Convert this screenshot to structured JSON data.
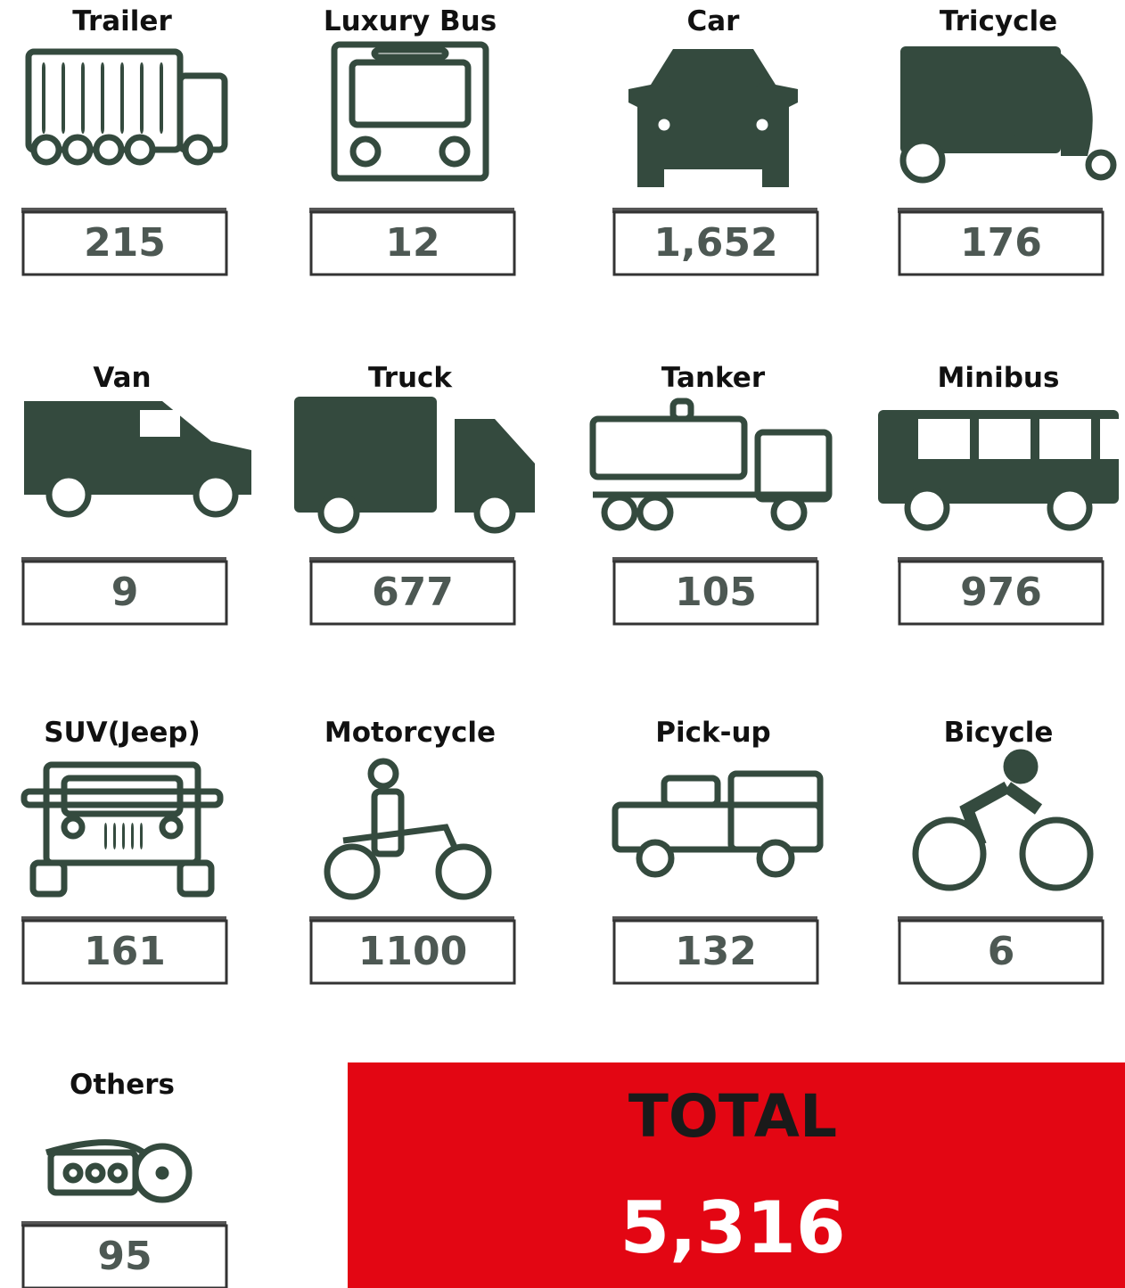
{
  "items": [
    {
      "label": "Trailer",
      "value": "215"
    },
    {
      "label": "Luxury Bus",
      "value": "12"
    },
    {
      "label": "Car",
      "value": "1,652"
    },
    {
      "label": "Tricycle",
      "value": "176"
    },
    {
      "label": "Van",
      "value": "9"
    },
    {
      "label": "Truck",
      "value": "677"
    },
    {
      "label": "Tanker",
      "value": "105"
    },
    {
      "label": "Minibus",
      "value": "976"
    },
    {
      "label": "SUV(Jeep)",
      "value": "161"
    },
    {
      "label": "Motorcycle",
      "value": "1100"
    },
    {
      "label": "Pick-up",
      "value": "132"
    },
    {
      "label": "Bicycle",
      "value": "6"
    },
    {
      "label": "Others",
      "value": "95"
    }
  ],
  "total": {
    "label": "TOTAL",
    "value": "5,316"
  }
}
